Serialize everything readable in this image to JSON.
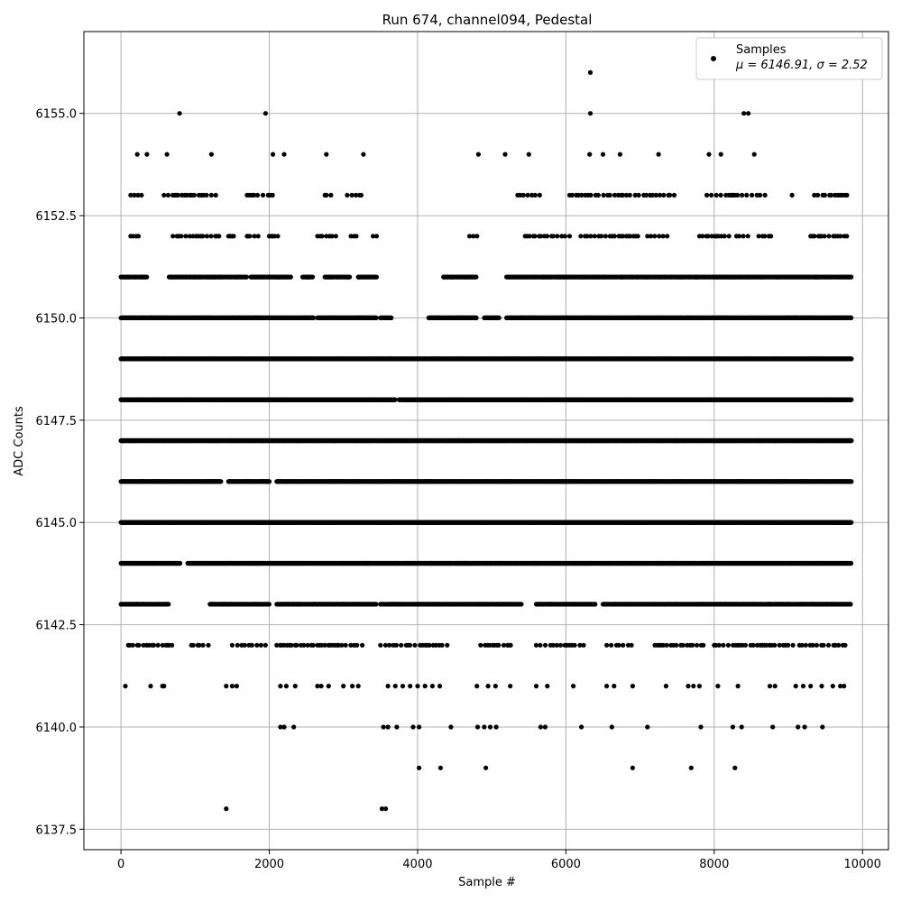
{
  "chart_data": {
    "type": "scatter",
    "title": "Run 674, channel094, Pedestal",
    "xlabel": "Sample #",
    "ylabel": "ADC Counts",
    "xlim": [
      -500,
      10350
    ],
    "ylim": [
      6137.0,
      6157.0
    ],
    "xticks": [
      0,
      2000,
      4000,
      6000,
      8000,
      10000
    ],
    "xtick_labels": [
      "0",
      "2000",
      "4000",
      "6000",
      "8000",
      "10000"
    ],
    "yticks": [
      6137.5,
      6140.0,
      6142.5,
      6145.0,
      6147.5,
      6150.0,
      6152.5,
      6155.0
    ],
    "ytick_labels": [
      "6137.5",
      "6140.0",
      "6142.5",
      "6145.0",
      "6147.5",
      "6150.0",
      "6152.5",
      "6155.0"
    ],
    "grid": true,
    "legend": {
      "placement": "top-right",
      "label": "Samples",
      "stats": "μ = 6146.91, σ = 2.52"
    },
    "series": [
      {
        "name": "Samples",
        "color": "#000000",
        "marker": "circle",
        "sample_count": 9840,
        "points": [
          [
            790,
            6155
          ],
          [
            1950,
            6155
          ],
          [
            6330,
            6155
          ],
          [
            6330,
            6156
          ],
          [
            8400,
            6155
          ],
          [
            8460,
            6155
          ],
          [
            1420,
            6138
          ],
          [
            3520,
            6138
          ],
          [
            3570,
            6138
          ],
          [
            4020,
            6139
          ],
          [
            4310,
            6139
          ],
          [
            4920,
            6139
          ],
          [
            6900,
            6139
          ],
          [
            7690,
            6139
          ],
          [
            8280,
            6139
          ],
          [
            220,
            6154
          ],
          [
            350,
            6154
          ],
          [
            620,
            6154
          ],
          [
            1220,
            6154
          ],
          [
            2050,
            6154
          ],
          [
            2200,
            6154
          ],
          [
            2770,
            6154
          ],
          [
            3270,
            6154
          ],
          [
            4820,
            6154
          ],
          [
            5180,
            6154
          ],
          [
            5500,
            6154
          ],
          [
            6320,
            6154
          ],
          [
            6500,
            6154
          ],
          [
            6730,
            6154
          ],
          [
            7250,
            6154
          ],
          [
            7930,
            6154
          ],
          [
            8090,
            6154
          ],
          [
            8540,
            6154
          ],
          [
            2150,
            6140
          ],
          [
            2200,
            6140
          ],
          [
            2330,
            6140
          ],
          [
            3540,
            6140
          ],
          [
            3600,
            6140
          ],
          [
            3720,
            6140
          ],
          [
            3940,
            6140
          ],
          [
            4020,
            6140
          ],
          [
            4450,
            6140
          ],
          [
            4810,
            6140
          ],
          [
            4900,
            6140
          ],
          [
            4980,
            6140
          ],
          [
            5060,
            6140
          ],
          [
            5660,
            6140
          ],
          [
            5720,
            6140
          ],
          [
            6210,
            6140
          ],
          [
            6620,
            6140
          ],
          [
            7100,
            6140
          ],
          [
            7820,
            6140
          ],
          [
            8250,
            6140
          ],
          [
            8370,
            6140
          ],
          [
            8790,
            6140
          ],
          [
            9130,
            6140
          ],
          [
            9220,
            6140
          ],
          [
            9460,
            6140
          ],
          [
            60,
            6141
          ],
          [
            400,
            6141
          ],
          [
            560,
            6141
          ],
          [
            580,
            6141
          ],
          [
            1420,
            6141
          ],
          [
            1500,
            6141
          ],
          [
            1560,
            6141
          ],
          [
            2150,
            6141
          ],
          [
            2230,
            6141
          ],
          [
            2350,
            6141
          ],
          [
            2650,
            6141
          ],
          [
            2700,
            6141
          ],
          [
            2800,
            6141
          ],
          [
            3000,
            6141
          ],
          [
            3120,
            6141
          ],
          [
            3200,
            6141
          ],
          [
            3600,
            6141
          ],
          [
            3700,
            6141
          ],
          [
            3800,
            6141
          ],
          [
            3900,
            6141
          ],
          [
            4000,
            6141
          ],
          [
            4100,
            6141
          ],
          [
            4200,
            6141
          ],
          [
            4300,
            6141
          ],
          [
            4800,
            6141
          ],
          [
            4950,
            6141
          ],
          [
            5050,
            6141
          ],
          [
            5250,
            6141
          ],
          [
            5600,
            6141
          ],
          [
            5750,
            6141
          ],
          [
            6100,
            6141
          ],
          [
            6550,
            6141
          ],
          [
            6650,
            6141
          ],
          [
            6900,
            6141
          ],
          [
            7350,
            6141
          ],
          [
            7650,
            6141
          ],
          [
            7720,
            6141
          ],
          [
            7800,
            6141
          ],
          [
            8050,
            6141
          ],
          [
            8320,
            6141
          ],
          [
            8750,
            6141
          ],
          [
            8820,
            6141
          ],
          [
            9100,
            6141
          ],
          [
            9200,
            6141
          ],
          [
            9300,
            6141
          ],
          [
            9450,
            6141
          ],
          [
            9600,
            6141
          ],
          [
            9700,
            6141
          ],
          [
            9750,
            6141
          ]
        ],
        "dense_levels": [
          {
            "y": 6152,
            "ranges": [
              [
                130,
                250
              ],
              [
                700,
                1350
              ],
              [
                1450,
                1550
              ],
              [
                1700,
                1900
              ],
              [
                2000,
                2150
              ],
              [
                2650,
                2900
              ],
              [
                3100,
                3200
              ],
              [
                3400,
                3450
              ],
              [
                4700,
                4820
              ],
              [
                5450,
                6100
              ],
              [
                6200,
                7000
              ],
              [
                7100,
                7400
              ],
              [
                7800,
                8200
              ],
              [
                8300,
                8500
              ],
              [
                8600,
                8800
              ],
              [
                9300,
                9800
              ]
            ],
            "spread": 40
          },
          {
            "y": 6153,
            "ranges": [
              [
                130,
                300
              ],
              [
                580,
                1300
              ],
              [
                1700,
                2100
              ],
              [
                2750,
                2850
              ],
              [
                3050,
                3250
              ],
              [
                5350,
                5700
              ],
              [
                6050,
                7500
              ],
              [
                7900,
                8700
              ],
              [
                9050,
                9100
              ],
              [
                9350,
                9850
              ]
            ],
            "spread": 45
          },
          {
            "y": 6151,
            "ranges": [
              [
                0,
                350
              ],
              [
                650,
                1700
              ],
              [
                1750,
                2300
              ],
              [
                2450,
                2600
              ],
              [
                2750,
                3100
              ],
              [
                3200,
                3450
              ],
              [
                4350,
                4800
              ],
              [
                5200,
                9850
              ]
            ],
            "spread": 12
          },
          {
            "y": 6150,
            "ranges": [
              [
                0,
                2600
              ],
              [
                2650,
                3450
              ],
              [
                3500,
                3650
              ],
              [
                4150,
                4800
              ],
              [
                4900,
                5100
              ],
              [
                5200,
                9850
              ]
            ],
            "spread": 6
          },
          {
            "y": 6149,
            "ranges": [
              [
                0,
                9850
              ]
            ],
            "spread": 4
          },
          {
            "y": 6148,
            "ranges": [
              [
                0,
                3700
              ],
              [
                3750,
                9850
              ]
            ],
            "spread": 4
          },
          {
            "y": 6147,
            "ranges": [
              [
                0,
                9850
              ]
            ],
            "spread": 3
          },
          {
            "y": 6146,
            "ranges": [
              [
                0,
                1350
              ],
              [
                1450,
                2000
              ],
              [
                2100,
                9850
              ]
            ],
            "spread": 4
          },
          {
            "y": 6145,
            "ranges": [
              [
                0,
                9850
              ]
            ],
            "spread": 4
          },
          {
            "y": 6144,
            "ranges": [
              [
                0,
                800
              ],
              [
                900,
                9850
              ]
            ],
            "spread": 5
          },
          {
            "y": 6143,
            "ranges": [
              [
                0,
                650
              ],
              [
                1200,
                2000
              ],
              [
                2100,
                3450
              ],
              [
                3500,
                5400
              ],
              [
                5600,
                6400
              ],
              [
                6500,
                9850
              ]
            ],
            "spread": 10
          },
          {
            "y": 6142,
            "ranges": [
              [
                100,
                700
              ],
              [
                950,
                1200
              ],
              [
                1500,
                1950
              ],
              [
                2100,
                3300
              ],
              [
                3500,
                4400
              ],
              [
                4850,
                5300
              ],
              [
                5600,
                6250
              ],
              [
                6550,
                6900
              ],
              [
                7200,
                7500
              ],
              [
                7550,
                7900
              ],
              [
                8000,
                9100
              ],
              [
                9150,
                9800
              ]
            ],
            "spread": 45
          }
        ]
      }
    ]
  }
}
